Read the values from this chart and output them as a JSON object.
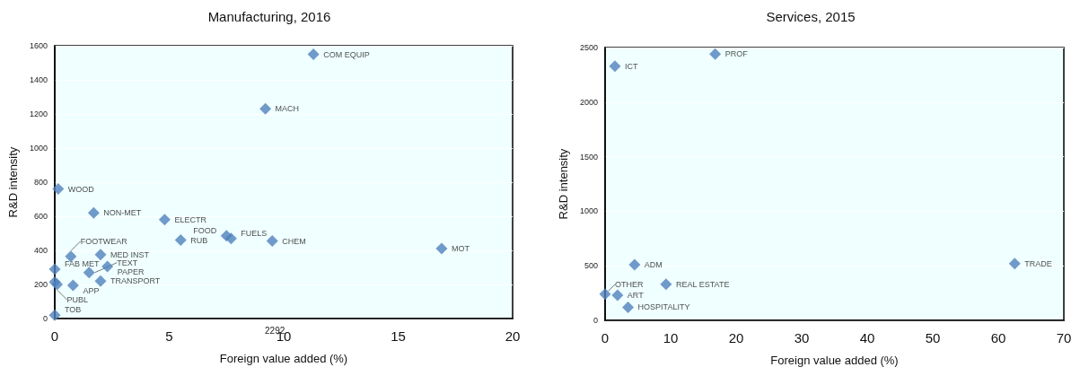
{
  "chart_data": [
    {
      "type": "scatter",
      "title": "Manufacturing, 2016",
      "xlabel": "Foreign value added (%)",
      "ylabel": "R&D intensity",
      "marker": "diamond",
      "color": "#4f81bd",
      "grid": "y",
      "xlim": [
        0,
        20
      ],
      "xticks": [
        0,
        5,
        10,
        15,
        20
      ],
      "ylim": [
        0,
        1600
      ],
      "yticks": [
        0,
        200,
        400,
        600,
        800,
        1000,
        1200,
        1400,
        1600
      ],
      "annotations": [
        "2292"
      ],
      "x": [
        11.3,
        9.2,
        0.15,
        1.7,
        4.8,
        5.5,
        7.5,
        7.7,
        9.5,
        16.9,
        0.7,
        2.0,
        0,
        1.5,
        2.3,
        2.0,
        0.8,
        0.1,
        0,
        0
      ],
      "values": [
        1550,
        1230,
        760,
        620,
        580,
        460,
        485,
        470,
        455,
        410,
        365,
        375,
        290,
        270,
        305,
        220,
        195,
        200,
        215,
        20
      ],
      "value_labels": [
        "COM EQUIP",
        "MACH",
        "WOOD",
        "NON-MET",
        "ELECTR",
        "RUB",
        "FOOD",
        "FUELS",
        "CHEM",
        "MOT",
        "FOOTWEAR",
        "MED INST",
        "FAB MET",
        "TEXT",
        "PAPER",
        "TRANSPORT",
        "APP",
        "PUBL",
        null,
        "TOB"
      ]
    },
    {
      "type": "scatter",
      "title": "Services, 2015",
      "xlabel": "Foreign value added (%)",
      "ylabel": "R&D intensity",
      "marker": "diamond",
      "color": "#4f81bd",
      "grid": "y",
      "xlim": [
        0,
        70
      ],
      "xticks": [
        0,
        10,
        20,
        30,
        40,
        50,
        60,
        70
      ],
      "ylim": [
        0,
        2500
      ],
      "yticks": [
        0,
        500,
        1000,
        1500,
        2000,
        2500
      ],
      "x": [
        16.8,
        1.5,
        62.5,
        4.5,
        9.3,
        0,
        1.9,
        3.5
      ],
      "values": [
        2440,
        2330,
        520,
        510,
        330,
        240,
        230,
        120
      ],
      "value_labels": [
        "PROF",
        "ICT",
        "TRADE",
        "ADM",
        "REAL ESTATE",
        "OTHER",
        "ART",
        "HOSPITALITY"
      ]
    }
  ]
}
